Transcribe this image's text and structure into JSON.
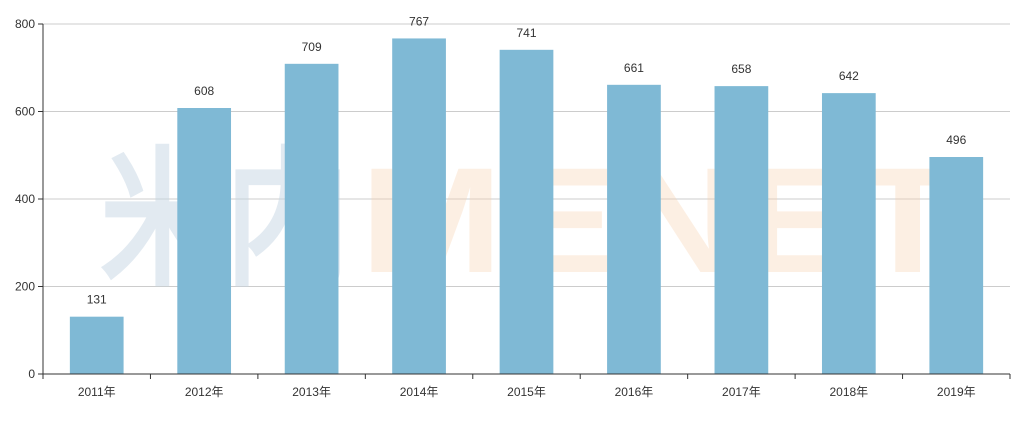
{
  "chart_data": {
    "type": "bar",
    "categories": [
      "2011年",
      "2012年",
      "2013年",
      "2014年",
      "2015年",
      "2016年",
      "2017年",
      "2018年",
      "2019年"
    ],
    "values": [
      131,
      608,
      709,
      767,
      741,
      661,
      658,
      642,
      496
    ],
    "title": "",
    "xlabel": "",
    "ylabel": "",
    "ylim": [
      0,
      800
    ],
    "yticks": [
      0,
      200,
      400,
      600,
      800
    ],
    "grid": true,
    "data_labels": true,
    "bar_color": "#7fb9d5",
    "gridline_color": "#cccccc",
    "axis_color": "#333333"
  },
  "watermark": {
    "left_text": "米内",
    "right_text": "MENET"
  }
}
